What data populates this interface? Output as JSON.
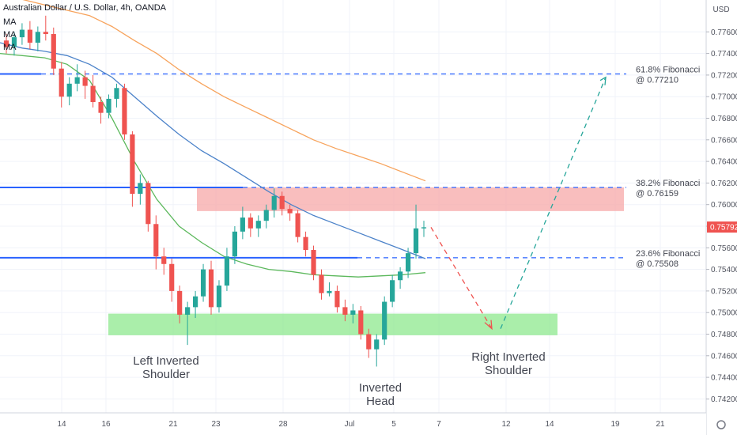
{
  "header": {
    "title": "Australian Dollar / U.S. Dollar, 4h, OANDA",
    "ma_labels": [
      "MA",
      "MA",
      "MA"
    ]
  },
  "chart_data": {
    "type": "candlestick",
    "title": "Australian Dollar / U.S. Dollar, 4h, OANDA",
    "currency": "USD",
    "y_ticks": [
      "0.77600",
      "0.77400",
      "0.77200",
      "0.77000",
      "0.76800",
      "0.76600",
      "0.76400",
      "0.76200",
      "0.76000",
      "0.75800",
      "0.75600",
      "0.75400",
      "0.75200",
      "0.75000",
      "0.74800",
      "0.74600",
      "0.74400",
      "0.74200"
    ],
    "ylim": [
      0.7404,
      0.7791
    ],
    "x_ticks": [
      "14",
      "16",
      "21",
      "23",
      "28",
      "Jul",
      "5",
      "7",
      "12",
      "14",
      "19",
      "21"
    ],
    "last_price": "0.75792",
    "last_price_value": 0.75792,
    "grid": true,
    "candles_ohlc": [
      [
        0.7752,
        0.7758,
        0.774,
        0.7746
      ],
      [
        0.7746,
        0.776,
        0.7738,
        0.7755
      ],
      [
        0.7755,
        0.7768,
        0.7748,
        0.7762
      ],
      [
        0.7762,
        0.777,
        0.7744,
        0.775
      ],
      [
        0.775,
        0.7765,
        0.7742,
        0.776
      ],
      [
        0.776,
        0.7775,
        0.7752,
        0.7758
      ],
      [
        0.7758,
        0.7764,
        0.772,
        0.7726
      ],
      [
        0.7726,
        0.7732,
        0.769,
        0.77
      ],
      [
        0.77,
        0.7718,
        0.7692,
        0.7712
      ],
      [
        0.7712,
        0.773,
        0.7705,
        0.7718
      ],
      [
        0.7718,
        0.7724,
        0.7698,
        0.771
      ],
      [
        0.771,
        0.772,
        0.769,
        0.7695
      ],
      [
        0.7695,
        0.77,
        0.7675,
        0.7685
      ],
      [
        0.7685,
        0.7702,
        0.768,
        0.7698
      ],
      [
        0.7698,
        0.7712,
        0.769,
        0.7708
      ],
      [
        0.7708,
        0.7712,
        0.766,
        0.7665
      ],
      [
        0.7665,
        0.7668,
        0.7598,
        0.761
      ],
      [
        0.761,
        0.7628,
        0.76,
        0.762
      ],
      [
        0.762,
        0.7622,
        0.7575,
        0.7582
      ],
      [
        0.7582,
        0.759,
        0.754,
        0.7552
      ],
      [
        0.7552,
        0.756,
        0.7535,
        0.7545
      ],
      [
        0.7545,
        0.755,
        0.751,
        0.752
      ],
      [
        0.752,
        0.7525,
        0.749,
        0.7498
      ],
      [
        0.7498,
        0.751,
        0.747,
        0.7505
      ],
      [
        0.7505,
        0.752,
        0.7495,
        0.7515
      ],
      [
        0.7515,
        0.7545,
        0.751,
        0.754
      ],
      [
        0.754,
        0.7548,
        0.7498,
        0.7505
      ],
      [
        0.7505,
        0.753,
        0.75,
        0.7525
      ],
      [
        0.7525,
        0.756,
        0.752,
        0.7552
      ],
      [
        0.7552,
        0.758,
        0.7545,
        0.7575
      ],
      [
        0.7575,
        0.7598,
        0.7568,
        0.7588
      ],
      [
        0.7588,
        0.7592,
        0.757,
        0.7578
      ],
      [
        0.7578,
        0.759,
        0.757,
        0.7585
      ],
      [
        0.7585,
        0.76,
        0.7578,
        0.7595
      ],
      [
        0.7595,
        0.7615,
        0.7588,
        0.7608
      ],
      [
        0.7608,
        0.7612,
        0.759,
        0.7596
      ],
      [
        0.7596,
        0.76,
        0.7585,
        0.7592
      ],
      [
        0.7592,
        0.7595,
        0.7565,
        0.757
      ],
      [
        0.757,
        0.7575,
        0.7552,
        0.7558
      ],
      [
        0.7558,
        0.7562,
        0.753,
        0.7535
      ],
      [
        0.7535,
        0.754,
        0.7512,
        0.7518
      ],
      [
        0.7518,
        0.7528,
        0.7515,
        0.752
      ],
      [
        0.752,
        0.7525,
        0.75,
        0.7505
      ],
      [
        0.7505,
        0.7512,
        0.7492,
        0.7498
      ],
      [
        0.7498,
        0.7508,
        0.749,
        0.7502
      ],
      [
        0.7502,
        0.7506,
        0.7475,
        0.748
      ],
      [
        0.748,
        0.7485,
        0.7458,
        0.7466
      ],
      [
        0.7466,
        0.748,
        0.745,
        0.7475
      ],
      [
        0.7475,
        0.7515,
        0.747,
        0.751
      ],
      [
        0.751,
        0.7535,
        0.7505,
        0.753
      ],
      [
        0.753,
        0.7542,
        0.7522,
        0.7538
      ],
      [
        0.7538,
        0.756,
        0.7532,
        0.7555
      ],
      [
        0.7555,
        0.76,
        0.755,
        0.7578
      ],
      [
        0.7578,
        0.7585,
        0.757,
        0.7579
      ]
    ],
    "moving_averages": [
      {
        "color": "#f7a35c",
        "values": [
          0.7795,
          0.779,
          0.7785,
          0.778,
          0.7775,
          0.7765,
          0.7752,
          0.774,
          0.7725,
          0.7712,
          0.77,
          0.769,
          0.768,
          0.767,
          0.766,
          0.7652,
          0.7645,
          0.7638,
          0.763,
          0.7622
        ]
      },
      {
        "color": "#4b82c9",
        "values": [
          0.775,
          0.7745,
          0.7742,
          0.7738,
          0.773,
          0.7718,
          0.77,
          0.7682,
          0.7665,
          0.765,
          0.7638,
          0.7625,
          0.7612,
          0.76,
          0.759,
          0.7582,
          0.7574,
          0.7566,
          0.7558,
          0.755
        ]
      },
      {
        "color": "#5cb85c",
        "values": [
          0.774,
          0.7738,
          0.7736,
          0.773,
          0.7715,
          0.768,
          0.764,
          0.7605,
          0.758,
          0.7565,
          0.7552,
          0.7545,
          0.754,
          0.7538,
          0.7535,
          0.7534,
          0.7533,
          0.7534,
          0.7535,
          0.7537
        ]
      }
    ],
    "fibonacci_levels": [
      {
        "label": "61.8% Fibonacci",
        "value_label": "@ 0.77210",
        "value": 0.7721
      },
      {
        "label": "38.2% Fibonacci",
        "value_label": "@ 0.76159",
        "value": 0.76159
      },
      {
        "label": "23.6% Fibonacci",
        "value_label": "@ 0.75508",
        "value": 0.75508
      }
    ],
    "zones": [
      {
        "name": "resistance",
        "color": "#f7a8a8",
        "y_low": 0.7594,
        "y_high": 0.7616
      },
      {
        "name": "support",
        "color": "#8ee88e",
        "y_low": 0.7479,
        "y_high": 0.7499
      }
    ],
    "annotations": [
      {
        "lines": [
          "Left Inverted",
          "Shoulder"
        ]
      },
      {
        "lines": [
          "Inverted",
          "Head"
        ]
      },
      {
        "lines": [
          "Right Inverted",
          "Shoulder"
        ]
      }
    ],
    "projection_points": [
      0.7579,
      0.7485,
      0.7485,
      0.7718
    ]
  }
}
